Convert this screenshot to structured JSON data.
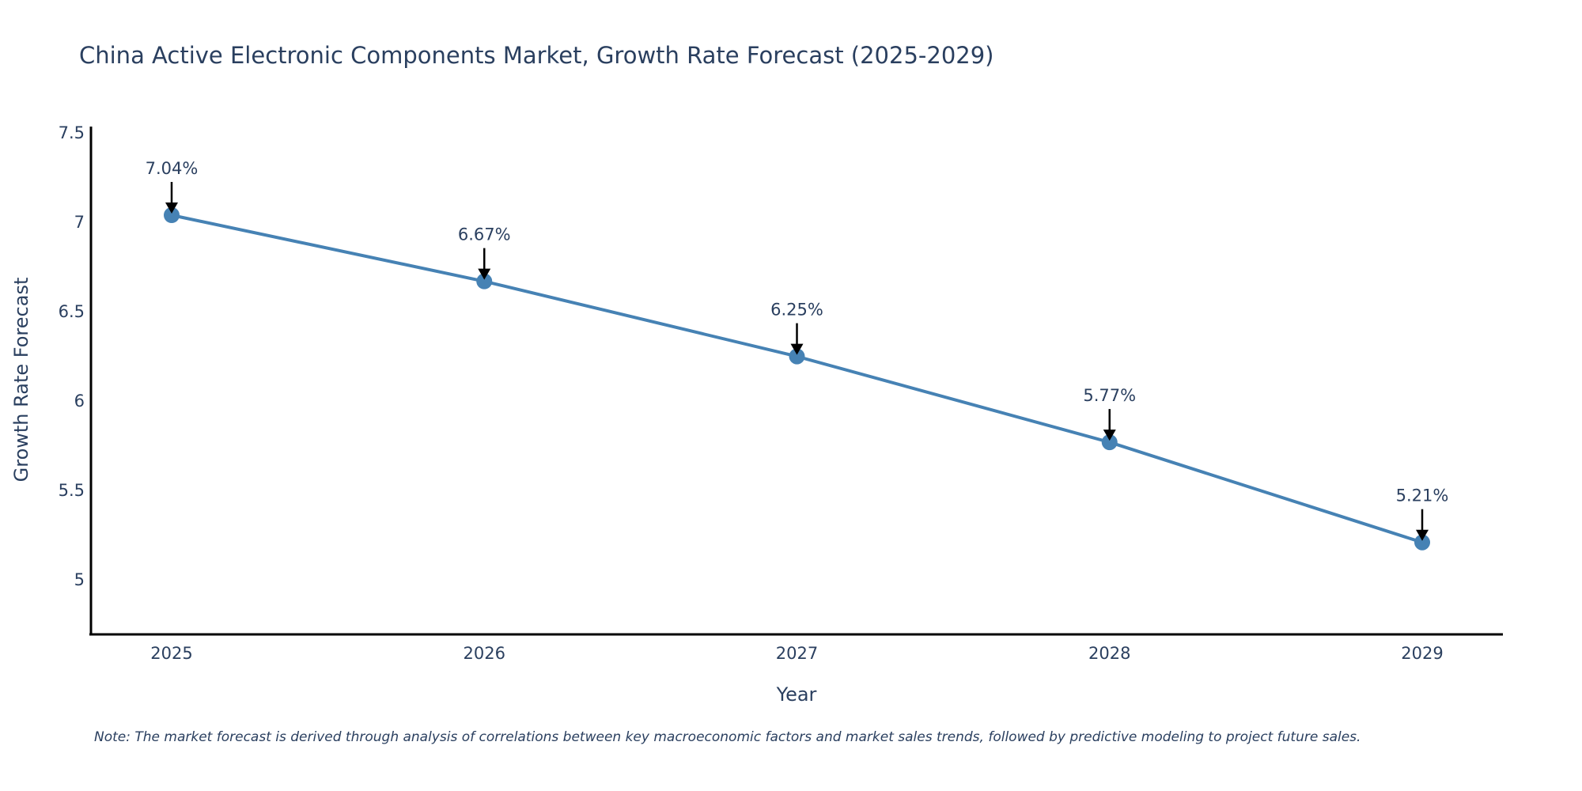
{
  "chart_data": {
    "type": "line",
    "title": "China Active Electronic Components Market, Growth Rate Forecast (2025-2029)",
    "xlabel": "Year",
    "ylabel": "Growth Rate Forecast",
    "categories": [
      "2025",
      "2026",
      "2027",
      "2028",
      "2029"
    ],
    "series": [
      {
        "name": "Growth Rate Forecast",
        "values": [
          7.04,
          6.67,
          6.25,
          5.77,
          5.21
        ],
        "color": "#4682b4"
      }
    ],
    "annotations": [
      "7.04%",
      "6.67%",
      "6.25%",
      "5.77%",
      "5.21%"
    ],
    "yticks": [
      5,
      5.5,
      6,
      6.5,
      7,
      7.5
    ],
    "ytick_labels": [
      "5",
      "5.5",
      "6",
      "6.5",
      "7",
      "7.5"
    ],
    "ylim": [
      4.7,
      7.5
    ],
    "grid": false,
    "legend": "none",
    "note": "Note: The market forecast is derived through analysis of correlations between key macroeconomic factors and market sales trends, followed by predictive modeling to project future sales."
  }
}
